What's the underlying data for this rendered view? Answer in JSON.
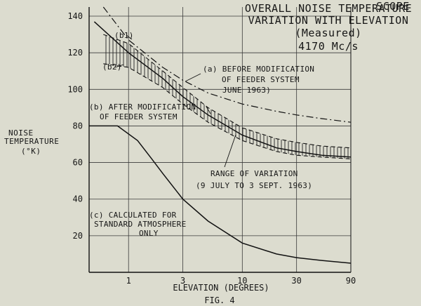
{
  "chart_data": {
    "type": "line",
    "title_lines": [
      "SCOPE",
      "OVERALL NOISE TEMPERATURE",
      "VARIATION WITH ELEVATION",
      "(Measured)",
      "4170 Mc/s"
    ],
    "ylabel_lines": [
      "NOISE",
      "TEMPERATURE",
      "(°K)"
    ],
    "xlabel": "ELEVATION (DEGREES)",
    "figure_label": "FIG. 4",
    "x_ticks": [
      "1",
      "3",
      "10",
      "30",
      "90"
    ],
    "y_ticks": [
      "20",
      "40",
      "60",
      "80",
      "100",
      "120",
      "140"
    ],
    "x_scale": "log",
    "xlim": [
      0.45,
      90
    ],
    "ylim": [
      0,
      145
    ],
    "series": [
      {
        "id": "a",
        "label": "(a)",
        "style": "dash-dot",
        "x": [
          0.6,
          1,
          2,
          3,
          5,
          10,
          20,
          30,
          50,
          90
        ],
        "y": [
          145,
          127,
          112,
          105,
          98,
          92,
          88,
          86,
          84,
          82
        ]
      },
      {
        "id": "b_upper",
        "label": "(b1)",
        "style": "dashed",
        "x": [
          0.6,
          1,
          2,
          3,
          5,
          10,
          20,
          30,
          50,
          90
        ],
        "y": [
          130,
          125,
          110,
          101,
          90,
          79,
          73,
          71,
          69,
          68
        ]
      },
      {
        "id": "b_lower",
        "label": "(b2)",
        "style": "dashed",
        "x": [
          0.6,
          1,
          2,
          3,
          5,
          10,
          20,
          30,
          50,
          90
        ],
        "y": [
          114,
          112,
          101,
          92,
          82,
          72,
          66,
          64,
          63,
          62
        ]
      },
      {
        "id": "b_mid",
        "label": "",
        "style": "solid",
        "x": [
          0.5,
          1,
          2,
          3,
          5,
          10,
          20,
          30,
          50,
          90
        ],
        "y": [
          137,
          120,
          106,
          96,
          86,
          75,
          68,
          66,
          64,
          63
        ]
      },
      {
        "id": "c",
        "label": "",
        "style": "solid",
        "x": [
          0.45,
          0.8,
          1.2,
          1.6,
          2,
          3,
          5,
          10,
          20,
          30,
          50,
          90
        ],
        "y": [
          80,
          80,
          72,
          62,
          54,
          40,
          28,
          16,
          10,
          8,
          6.5,
          5
        ]
      }
    ],
    "hatch_region": {
      "between": [
        "b_upper",
        "b_lower"
      ],
      "x_range": [
        0.6,
        90
      ]
    },
    "annotations": [
      {
        "id": "a",
        "lines": [
          "(a) BEFORE MODIFICATION",
          "OF FEEDER SYSTEM",
          "JUNE 1963)"
        ]
      },
      {
        "id": "b",
        "lines": [
          "(b) AFTER MODIFICATION",
          "OF FEEDER SYSTEM"
        ]
      },
      {
        "id": "range",
        "lines": [
          "RANGE OF VARIATION",
          "(9 JULY TO 3 SEPT. 1963)"
        ]
      },
      {
        "id": "c",
        "lines": [
          "(c) CALCULATED FOR",
          "STANDARD ATMOSPHERE",
          "ONLY"
        ]
      }
    ],
    "grid": true
  }
}
